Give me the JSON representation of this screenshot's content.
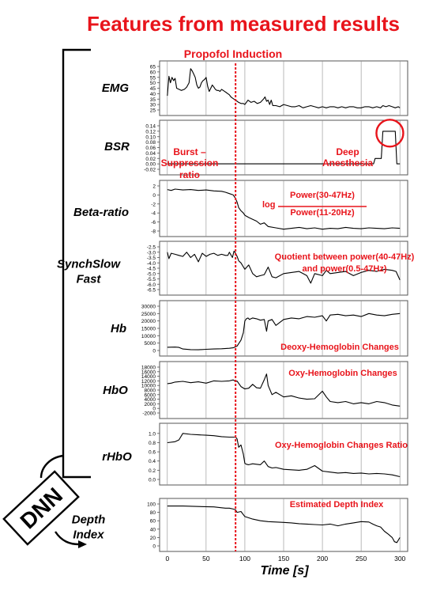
{
  "title": "Features from measured results",
  "induction_label": "Propofol Induction",
  "induction_time": 88,
  "xlabel": "Time [s]",
  "dnn_label": "DNN",
  "colors": {
    "accent": "#e8141b",
    "line": "#000000",
    "grid": "#8c8c8c"
  },
  "chart_data": [
    {
      "type": "line",
      "name": "EMG",
      "label": "EMG",
      "xlim": [
        -10,
        310
      ],
      "ylim": [
        25,
        65
      ],
      "yticks": [
        "65",
        "60",
        "55",
        "50",
        "45",
        "40",
        "35",
        "30",
        "25"
      ],
      "ytick_values": [
        65,
        60,
        55,
        50,
        45,
        40,
        35,
        30,
        25
      ],
      "annotations": [],
      "x": [
        0,
        2,
        4,
        6,
        8,
        10,
        12,
        15,
        18,
        22,
        25,
        28,
        30,
        32,
        34,
        36,
        38,
        40,
        42,
        44,
        46,
        48,
        50,
        52,
        54,
        56,
        58,
        60,
        62,
        64,
        66,
        68,
        70,
        72,
        74,
        76,
        78,
        80,
        82,
        84,
        86,
        88,
        90,
        92,
        95,
        98,
        100,
        104,
        108,
        112,
        116,
        120,
        124,
        126,
        128,
        130,
        132,
        134,
        136,
        140,
        145,
        150,
        155,
        160,
        165,
        170,
        175,
        180,
        185,
        190,
        195,
        200,
        205,
        210,
        215,
        220,
        225,
        230,
        235,
        240,
        245,
        250,
        255,
        260,
        265,
        270,
        275,
        278,
        282,
        286,
        290,
        294,
        298,
        300
      ],
      "y": [
        38,
        56,
        50,
        55,
        52,
        54,
        45,
        44,
        43,
        44,
        46,
        50,
        63,
        61,
        58,
        55,
        48,
        45,
        46,
        50,
        52,
        53,
        55,
        47,
        42,
        45,
        48,
        46,
        44,
        43,
        43,
        42,
        44,
        43,
        42,
        41,
        40,
        39,
        37,
        36,
        35,
        34,
        33,
        32,
        31,
        31,
        30,
        34,
        32,
        33,
        31,
        32,
        35,
        37,
        33,
        34,
        30,
        34,
        29,
        29,
        28,
        30,
        29,
        28,
        28,
        29,
        27,
        28,
        29,
        28,
        27,
        28,
        27,
        28,
        28,
        27,
        28,
        27,
        28,
        28,
        27,
        27,
        28,
        28,
        27,
        28,
        27,
        29,
        28,
        29,
        28,
        27,
        28,
        27
      ]
    },
    {
      "type": "line",
      "name": "BSR",
      "label": "BSR",
      "xlim": [
        -10,
        310
      ],
      "ylim": [
        -0.02,
        0.14
      ],
      "yticks": [
        "0.14",
        "0.12",
        "0.10",
        "0.08",
        "0.06",
        "0.04",
        "0.02",
        "0.00",
        "-0.02"
      ],
      "ytick_values": [
        0.14,
        0.12,
        0.1,
        0.08,
        0.06,
        0.04,
        0.02,
        0.0,
        -0.02
      ],
      "annotations": [
        "Burst –",
        "Suppression",
        "ratio",
        "Deep",
        "Anesthesia"
      ],
      "x": [
        0,
        50,
        100,
        150,
        200,
        250,
        255,
        260,
        266,
        268,
        272,
        276,
        278,
        282,
        286,
        290,
        292,
        294,
        296,
        300
      ],
      "y": [
        0,
        0,
        0,
        0,
        0,
        0,
        0,
        0,
        0,
        0.02,
        0.02,
        0.02,
        0.12,
        0.12,
        0.12,
        0.12,
        0.12,
        0.12,
        0,
        0
      ]
    },
    {
      "type": "line",
      "name": "Beta-ratio",
      "label": "Beta-ratio",
      "xlim": [
        -10,
        310
      ],
      "ylim": [
        -8,
        2
      ],
      "yticks": [
        "2",
        "0",
        "-2",
        "-4",
        "-6",
        "-8"
      ],
      "ytick_values": [
        2,
        0,
        -2,
        -4,
        -6,
        -8
      ],
      "annotations": [
        "log",
        "Power(30-47Hz)",
        "Power(11-20Hz)"
      ],
      "x": [
        0,
        5,
        10,
        20,
        30,
        40,
        50,
        60,
        70,
        75,
        80,
        85,
        88,
        90,
        92,
        95,
        98,
        100,
        105,
        110,
        115,
        120,
        125,
        130,
        140,
        150,
        160,
        170,
        180,
        190,
        200,
        210,
        220,
        230,
        240,
        250,
        260,
        270,
        280,
        290,
        300
      ],
      "y": [
        1.2,
        1.0,
        1.3,
        1.1,
        1.2,
        1.0,
        1.1,
        0.9,
        0.8,
        0.6,
        0.3,
        0,
        -0.8,
        -1.6,
        -2.8,
        -3.5,
        -4.0,
        -4.5,
        -5.0,
        -5.4,
        -5.8,
        -6.5,
        -6.2,
        -7.0,
        -7.3,
        -7.6,
        -7.4,
        -7.2,
        -7.5,
        -7.3,
        -7.6,
        -7.4,
        -7.5,
        -7.2,
        -7.4,
        -7.5,
        -7.3,
        -7.4,
        -7.5,
        -7.3,
        -7.4
      ]
    },
    {
      "type": "line",
      "name": "SynchSlow Fast",
      "label": "SynchSlow Fast",
      "xlim": [
        -10,
        310
      ],
      "ylim": [
        -6.5,
        -2.5
      ],
      "yticks": [
        "-2.5",
        "-3.0",
        "-3.5",
        "-4.0",
        "-4.5",
        "-5.0",
        "-5.5",
        "-6.0",
        "-6.5"
      ],
      "ytick_values": [
        -2.5,
        -3.0,
        -3.5,
        -4.0,
        -4.5,
        -5.0,
        -5.5,
        -6.0,
        -6.5
      ],
      "annotations": [
        "Quotient between power(40-47Hz)",
        "and power(0.5-47Hz)"
      ],
      "x": [
        0,
        2,
        5,
        10,
        15,
        20,
        25,
        30,
        35,
        40,
        45,
        50,
        55,
        60,
        65,
        70,
        75,
        78,
        80,
        84,
        86,
        88,
        90,
        92,
        95,
        100,
        105,
        110,
        115,
        120,
        125,
        130,
        135,
        140,
        150,
        160,
        170,
        180,
        185,
        190,
        200,
        205,
        210,
        220,
        230,
        240,
        250,
        260,
        270,
        280,
        290,
        295,
        300
      ],
      "y": [
        -3.0,
        -3.6,
        -3.1,
        -3.2,
        -3.3,
        -3.4,
        -3.0,
        -3.5,
        -3.2,
        -3.9,
        -3.1,
        -3.4,
        -3.2,
        -3.1,
        -3.3,
        -3.2,
        -3.3,
        -3.3,
        -3.0,
        -3.5,
        -2.9,
        -3.1,
        -3.4,
        -3.8,
        -4.0,
        -4.6,
        -4.2,
        -5.0,
        -5.3,
        -5.2,
        -5.1,
        -4.4,
        -5.3,
        -5.4,
        -5.0,
        -4.9,
        -4.8,
        -5.2,
        -5.9,
        -5.0,
        -5.2,
        -4.7,
        -5.0,
        -4.9,
        -4.8,
        -5.2,
        -4.9,
        -4.7,
        -4.8,
        -4.6,
        -4.7,
        -4.8,
        -5.6
      ]
    },
    {
      "type": "line",
      "name": "Hb",
      "label": "Hb",
      "xlim": [
        -10,
        310
      ],
      "ylim": [
        0,
        30000
      ],
      "yticks": [
        "30000",
        "25000",
        "20000",
        "15000",
        "10000",
        "5000",
        "0"
      ],
      "ytick_values": [
        30000,
        25000,
        20000,
        15000,
        10000,
        5000,
        0
      ],
      "annotations": [
        "Deoxy-Hemoglobin Changes"
      ],
      "x": [
        0,
        10,
        15,
        20,
        30,
        40,
        50,
        60,
        70,
        80,
        85,
        90,
        95,
        98,
        100,
        102,
        104,
        106,
        110,
        115,
        120,
        125,
        128,
        130,
        135,
        140,
        150,
        160,
        170,
        180,
        190,
        200,
        205,
        210,
        220,
        230,
        240,
        250,
        260,
        270,
        280,
        290,
        300
      ],
      "y": [
        2200,
        2300,
        2100,
        1000,
        600,
        500,
        800,
        1000,
        1200,
        1500,
        1800,
        3000,
        7000,
        12000,
        20000,
        21500,
        22000,
        21000,
        22000,
        21500,
        20500,
        21000,
        13000,
        20000,
        21000,
        17000,
        21000,
        22000,
        21500,
        23000,
        22500,
        23500,
        20000,
        24000,
        24500,
        23500,
        24000,
        23000,
        25000,
        24000,
        23500,
        24500,
        25000
      ]
    },
    {
      "type": "line",
      "name": "HbO",
      "label": "HbO",
      "xlim": [
        -10,
        310
      ],
      "ylim": [
        -2000,
        18000
      ],
      "yticks": [
        "18000",
        "16000",
        "14000",
        "12000",
        "10000",
        "8000",
        "6000",
        "4000",
        "2000",
        "0",
        "-2000"
      ],
      "ytick_values": [
        18000,
        16000,
        14000,
        12000,
        10000,
        8000,
        6000,
        4000,
        2000,
        0,
        -2000
      ],
      "annotations": [
        "Oxy-Hemoglobin Changes"
      ],
      "x": [
        0,
        5,
        10,
        20,
        30,
        40,
        50,
        60,
        70,
        80,
        85,
        88,
        90,
        95,
        100,
        105,
        110,
        115,
        120,
        125,
        128,
        130,
        135,
        140,
        150,
        160,
        170,
        180,
        190,
        200,
        205,
        210,
        220,
        230,
        240,
        250,
        260,
        270,
        280,
        290,
        300
      ],
      "y": [
        10800,
        11000,
        11500,
        11800,
        11200,
        11600,
        11000,
        12000,
        11800,
        12000,
        12400,
        11700,
        11900,
        9500,
        8500,
        8800,
        10500,
        9000,
        8800,
        12500,
        15000,
        10000,
        6000,
        7000,
        5000,
        5500,
        4500,
        4000,
        4200,
        7500,
        5000,
        3000,
        2500,
        3000,
        2000,
        2500,
        2000,
        3000,
        2500,
        1500,
        1000
      ]
    },
    {
      "type": "line",
      "name": "rHbO",
      "label": "rHbO",
      "xlim": [
        -10,
        310
      ],
      "ylim": [
        0,
        1.1
      ],
      "yticks": [
        "1.0",
        "0.8",
        "0.6",
        "0.4",
        "0.2",
        "0.0"
      ],
      "ytick_values": [
        1.0,
        0.8,
        0.6,
        0.4,
        0.2,
        0.0
      ],
      "annotations": [
        "Oxy-Hemoglobin Changes Ratio"
      ],
      "x": [
        0,
        10,
        15,
        20,
        30,
        40,
        50,
        60,
        70,
        80,
        88,
        90,
        92,
        95,
        98,
        100,
        102,
        105,
        110,
        115,
        120,
        125,
        130,
        135,
        140,
        150,
        160,
        170,
        180,
        190,
        200,
        210,
        220,
        230,
        240,
        250,
        260,
        270,
        280,
        290,
        300
      ],
      "y": [
        0.8,
        0.82,
        0.86,
        1.0,
        0.98,
        0.97,
        0.96,
        0.95,
        0.93,
        0.92,
        0.92,
        0.88,
        0.7,
        0.75,
        0.55,
        0.35,
        0.33,
        0.32,
        0.34,
        0.33,
        0.32,
        0.4,
        0.28,
        0.25,
        0.26,
        0.22,
        0.21,
        0.2,
        0.22,
        0.3,
        0.18,
        0.16,
        0.14,
        0.15,
        0.13,
        0.14,
        0.12,
        0.13,
        0.12,
        0.1,
        0.06
      ]
    },
    {
      "type": "line",
      "name": "Depth Index",
      "label": "Depth Index",
      "xlim": [
        -10,
        310
      ],
      "ylim": [
        0,
        100
      ],
      "yticks": [
        "100",
        "80",
        "60",
        "40",
        "20",
        "0"
      ],
      "ytick_values": [
        100,
        80,
        60,
        40,
        20,
        0
      ],
      "annotations": [
        "Estimated Depth Index"
      ],
      "xticks": [
        "0",
        "50",
        "100",
        "150",
        "200",
        "250",
        "300"
      ],
      "xtick_values": [
        0,
        50,
        100,
        150,
        200,
        250,
        300
      ],
      "x": [
        0,
        20,
        40,
        60,
        70,
        75,
        80,
        85,
        88,
        90,
        95,
        100,
        110,
        120,
        130,
        140,
        150,
        160,
        170,
        180,
        190,
        200,
        210,
        220,
        230,
        240,
        250,
        260,
        265,
        270,
        275,
        280,
        285,
        290,
        293,
        296,
        300
      ],
      "y": [
        95,
        95,
        94,
        93,
        91,
        90,
        90,
        88,
        86,
        80,
        82,
        70,
        64,
        60,
        58,
        57,
        56,
        55,
        53,
        52,
        51,
        50,
        52,
        48,
        52,
        55,
        58,
        57,
        52,
        48,
        45,
        35,
        28,
        20,
        10,
        8,
        20
      ]
    }
  ]
}
